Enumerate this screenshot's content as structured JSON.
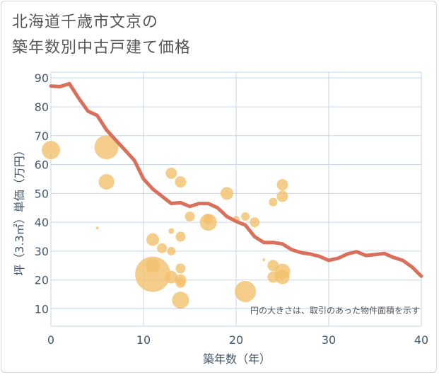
{
  "chart_data": {
    "type": "scatter",
    "title": "北海道千歳市文京の\n築年数別中古戸建て価格",
    "xlabel": "築年数（年）",
    "ylabel": "坪（3.3㎡）単価（万円）",
    "xlim": [
      0,
      40
    ],
    "ylim": [
      4,
      92
    ],
    "xticks": [
      0,
      10,
      20,
      30,
      40
    ],
    "yticks": [
      10,
      20,
      30,
      40,
      50,
      60,
      70,
      80,
      90
    ],
    "grid": true,
    "note": "円の大きさは、取引のあった物件面積を示す",
    "colors": {
      "line": "#d9705c",
      "bubble": "#f2c16d",
      "grid": "#c5d7e8",
      "axis_text": "#44576b"
    },
    "series": [
      {
        "type": "line",
        "points": [
          [
            0,
            87.2
          ],
          [
            1,
            87.0
          ],
          [
            2,
            88.0
          ],
          [
            3,
            83.0
          ],
          [
            4,
            78.5
          ],
          [
            5,
            77.0
          ],
          [
            6,
            72.0
          ],
          [
            7,
            68.5
          ],
          [
            8,
            65.0
          ],
          [
            9,
            61.5
          ],
          [
            10,
            55.0
          ],
          [
            11,
            51.5
          ],
          [
            12,
            49.0
          ],
          [
            13,
            46.5
          ],
          [
            14,
            46.8
          ],
          [
            15,
            45.5
          ],
          [
            16,
            46.5
          ],
          [
            17,
            46.5
          ],
          [
            18,
            45.0
          ],
          [
            19,
            42.0
          ],
          [
            20,
            40.3
          ],
          [
            21,
            39.0
          ],
          [
            22,
            35.0
          ],
          [
            23,
            33.0
          ],
          [
            24,
            33.0
          ],
          [
            25,
            32.5
          ],
          [
            26,
            30.5
          ],
          [
            27,
            29.5
          ],
          [
            28,
            29.0
          ],
          [
            29,
            28.2
          ],
          [
            30,
            26.8
          ],
          [
            31,
            27.5
          ],
          [
            32,
            29.0
          ],
          [
            33,
            29.8
          ],
          [
            34,
            28.5
          ],
          [
            35,
            28.8
          ],
          [
            36,
            29.2
          ],
          [
            37,
            27.8
          ],
          [
            38,
            26.8
          ],
          [
            39,
            24.5
          ],
          [
            40,
            21.3
          ]
        ]
      },
      {
        "type": "bubble",
        "points": [
          [
            0,
            65,
            13
          ],
          [
            6,
            66,
            17
          ],
          [
            6,
            54,
            11
          ],
          [
            5,
            38,
            2
          ],
          [
            11,
            22,
            25
          ],
          [
            11,
            25,
            10
          ],
          [
            11,
            34,
            9
          ],
          [
            12,
            31,
            7
          ],
          [
            13,
            57,
            8
          ],
          [
            13,
            37,
            4
          ],
          [
            13,
            30,
            6
          ],
          [
            13,
            21,
            9
          ],
          [
            14,
            54,
            8
          ],
          [
            14,
            35,
            7
          ],
          [
            14,
            24,
            7
          ],
          [
            14,
            20,
            8
          ],
          [
            14,
            19,
            7
          ],
          [
            14,
            13,
            12
          ],
          [
            15,
            42,
            7
          ],
          [
            17,
            40,
            12
          ],
          [
            17,
            41,
            7
          ],
          [
            19,
            50,
            9
          ],
          [
            20,
            41,
            5
          ],
          [
            21,
            42,
            6
          ],
          [
            21,
            16,
            15
          ],
          [
            22,
            40,
            7
          ],
          [
            23,
            27,
            2
          ],
          [
            24,
            47,
            6
          ],
          [
            24,
            25,
            8
          ],
          [
            24,
            21,
            8
          ],
          [
            25,
            53,
            8
          ],
          [
            25,
            49,
            8
          ],
          [
            25,
            23,
            11
          ],
          [
            25,
            21,
            10
          ]
        ]
      }
    ]
  }
}
